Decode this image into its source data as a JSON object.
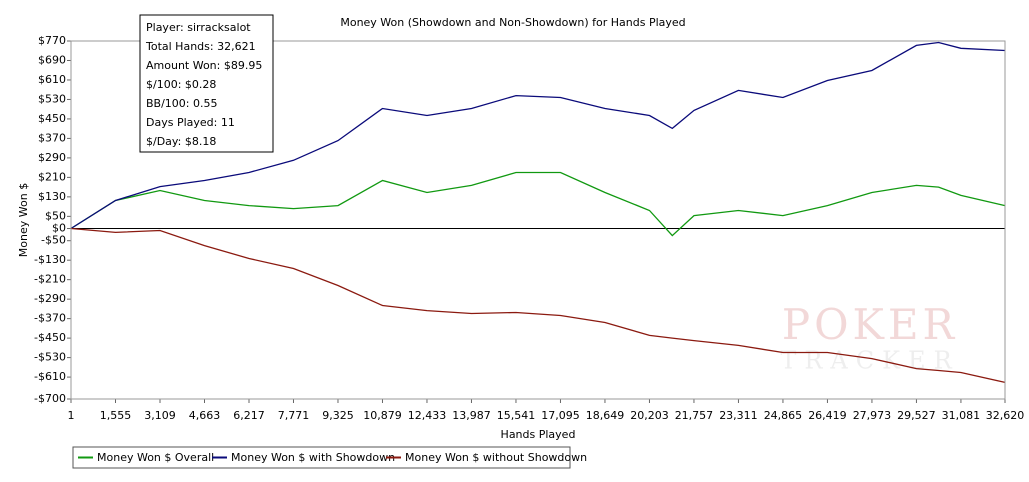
{
  "chart_data": {
    "type": "line",
    "title": "Money Won (Showdown and Non-Showdown) for Hands Played",
    "x_label": "Hands Played",
    "y_label": "Money Won $",
    "x": [
      1,
      1555,
      3109,
      4663,
      6217,
      7771,
      9325,
      10879,
      12433,
      13987,
      15541,
      17095,
      18649,
      20203,
      21000,
      21757,
      23311,
      24865,
      26419,
      27973,
      29527,
      30300,
      31081,
      32620
    ],
    "series": [
      {
        "name": "Money Won $ Overall",
        "color": "#119911",
        "values": [
          0,
          115,
          156,
          115,
          94,
          82,
          94,
          197,
          148,
          177,
          230,
          230,
          148,
          74,
          -29,
          53,
          74,
          53,
          94,
          148,
          177,
          170,
          136,
          94
        ]
      },
      {
        "name": "Money Won $ with Showdown",
        "color": "#0a0a7a",
        "values": [
          0,
          115,
          172,
          197,
          230,
          280,
          361,
          493,
          464,
          493,
          546,
          538,
          493,
          464,
          411,
          485,
          567,
          538,
          608,
          649,
          752,
          764,
          740,
          731
        ]
      },
      {
        "name": "Money Won $ without Showdown",
        "color": "#8b1a10",
        "values": [
          0,
          -16,
          -8,
          -70,
          -123,
          -164,
          -234,
          -316,
          -337,
          -349,
          -345,
          -357,
          -386,
          -439,
          -450,
          -460,
          -480,
          -509,
          -509,
          -534,
          -575,
          -583,
          -591,
          -632
        ]
      }
    ],
    "xlim": [
      1,
      32620
    ],
    "xticks": [
      1,
      {
        "value": 1555,
        "label": "1,555"
      },
      {
        "value": 3109,
        "label": "3,109"
      },
      {
        "value": 4663,
        "label": "4,663"
      },
      {
        "value": 6217,
        "label": "6,217"
      },
      {
        "value": 7771,
        "label": "7,771"
      },
      {
        "value": 9325,
        "label": "9,325"
      },
      {
        "value": 10879,
        "label": "10,879"
      },
      {
        "value": 12433,
        "label": "12,433"
      },
      {
        "value": 13987,
        "label": "13,987"
      },
      {
        "value": 15541,
        "label": "15,541"
      },
      {
        "value": 17095,
        "label": "17,095"
      },
      {
        "value": 18649,
        "label": "18,649"
      },
      {
        "value": 20203,
        "label": "20,203"
      },
      {
        "value": 21757,
        "label": "21,757"
      },
      {
        "value": 23311,
        "label": "23,311"
      },
      {
        "value": 24865,
        "label": "24,865"
      },
      {
        "value": 26419,
        "label": "26,419"
      },
      {
        "value": 27973,
        "label": "27,973"
      },
      {
        "value": 29527,
        "label": "29,527"
      },
      {
        "value": 31081,
        "label": "31,081"
      },
      {
        "value": 32620,
        "label": "32,620"
      }
    ],
    "ylim": [
      -700,
      770
    ],
    "yticks": [
      {
        "value": 770,
        "label": "$770"
      },
      {
        "value": 690,
        "label": "$690"
      },
      {
        "value": 610,
        "label": "$610"
      },
      {
        "value": 530,
        "label": "$530"
      },
      {
        "value": 450,
        "label": "$450"
      },
      {
        "value": 370,
        "label": "$370"
      },
      {
        "value": 290,
        "label": "$290"
      },
      {
        "value": 210,
        "label": "$210"
      },
      {
        "value": 130,
        "label": "$130"
      },
      {
        "value": 50,
        "label": "$50"
      },
      {
        "value": 0,
        "label": "$0"
      },
      {
        "value": -50,
        "label": "-$50"
      },
      {
        "value": -130,
        "label": "-$130"
      },
      {
        "value": -210,
        "label": "-$210"
      },
      {
        "value": -290,
        "label": "-$290"
      },
      {
        "value": -370,
        "label": "-$370"
      },
      {
        "value": -450,
        "label": "-$450"
      },
      {
        "value": -530,
        "label": "-$530"
      },
      {
        "value": -610,
        "label": "-$610"
      },
      {
        "value": -700,
        "label": "-$700"
      }
    ],
    "tooltip": [
      "Player: sirracksalot",
      "Total Hands: 32,621",
      "Amount Won: $89.95",
      "$/100: $0.28",
      "BB/100: 0.55",
      "Days Played: 11",
      "$/Day: $8.18"
    ],
    "watermark": [
      "POKER",
      "TRACKER"
    ]
  }
}
